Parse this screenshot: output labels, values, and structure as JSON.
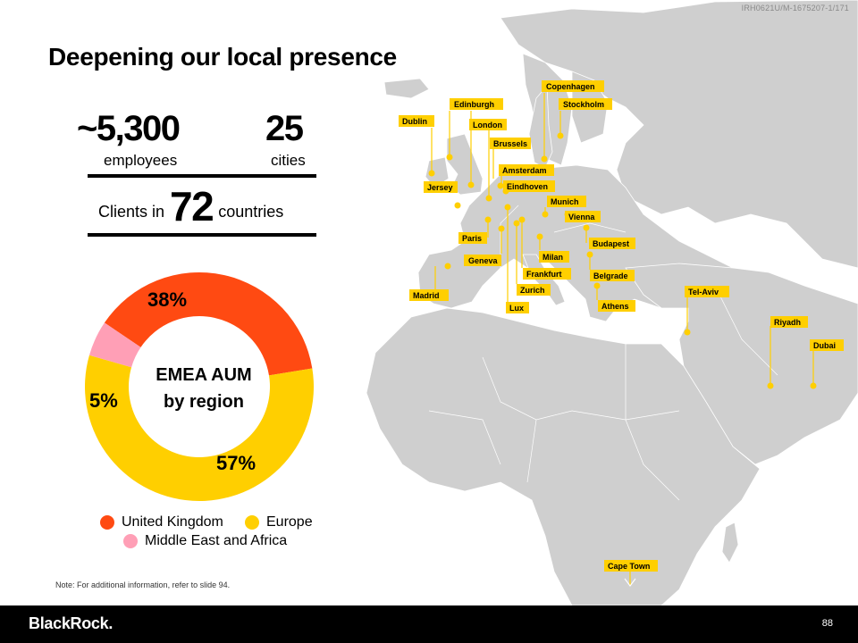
{
  "doc_id": "IRH0621U/M-1675207-1/171",
  "title": "Deepening our local presence",
  "stats": {
    "employees_value": "~5,300",
    "employees_label": "employees",
    "cities_value": "25",
    "cities_label": "cities",
    "clients_prefix": "Clients in",
    "countries_value": "72",
    "countries_label": "countries"
  },
  "donut": {
    "center_line1": "EMEA AUM",
    "center_line2": "by region",
    "segments": [
      {
        "name": "United Kingdom",
        "value": 38,
        "label": "38%",
        "color": "#ff4a12"
      },
      {
        "name": "Europe",
        "value": 57,
        "label": "57%",
        "color": "#ffcf00"
      },
      {
        "name": "Middle East and Africa",
        "value": 5,
        "label": "5%",
        "color": "#ff9fb6"
      }
    ]
  },
  "legend": [
    "United Kingdom",
    "Europe",
    "Middle East and Africa"
  ],
  "cities": [
    "Copenhagen",
    "Edinburgh",
    "Stockholm",
    "Dublin",
    "London",
    "Brussels",
    "Amsterdam",
    "Jersey",
    "Eindhoven",
    "Munich",
    "Vienna",
    "Paris",
    "Budapest",
    "Milan",
    "Geneva",
    "Frankfurt",
    "Belgrade",
    "Zurich",
    "Madrid",
    "Tel-Aviv",
    "Lux",
    "Athens",
    "Riyadh",
    "Dubai",
    "Cape Town"
  ],
  "colors": {
    "map_land": "#cfcfcf",
    "label_bg": "#ffcf00",
    "pin": "#ffcf00"
  },
  "note": "Note: For additional information, refer to slide 94.",
  "footer": {
    "logo": "BlackRock.",
    "page": "88"
  }
}
